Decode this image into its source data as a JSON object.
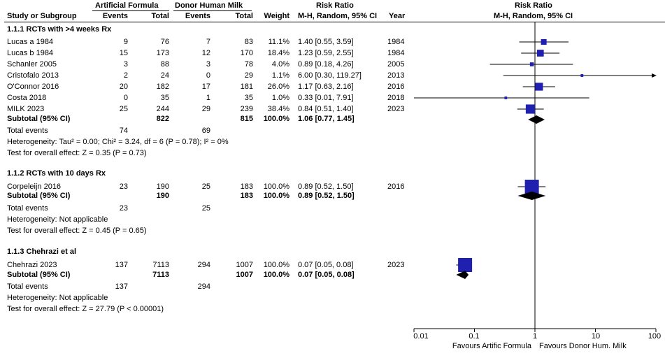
{
  "headers": {
    "group_af": "Artificial Formula",
    "group_dhm": "Donor Human Milk",
    "study": "Study or Subgroup",
    "events": "Events",
    "total": "Total",
    "weight": "Weight",
    "rr_title": "Risk Ratio",
    "rr_method": "M-H, Random, 95% CI",
    "year": "Year",
    "plot_title": "Risk Ratio",
    "plot_method": "M-H, Random, 95% CI"
  },
  "subgroups": [
    {
      "title": "1.1.1 RCTs with >4 weeks Rx",
      "studies": [
        {
          "name": "Lucas a 1984",
          "e1": "9",
          "n1": "76",
          "e2": "7",
          "n2": "83",
          "weight": "11.1%",
          "ci": "1.40 [0.55, 3.59]",
          "year": "1984"
        },
        {
          "name": "Lucas b 1984",
          "e1": "15",
          "n1": "173",
          "e2": "12",
          "n2": "170",
          "weight": "18.4%",
          "ci": "1.23 [0.59, 2.55]",
          "year": "1984"
        },
        {
          "name": "Schanler 2005",
          "e1": "3",
          "n1": "88",
          "e2": "3",
          "n2": "78",
          "weight": "4.0%",
          "ci": "0.89 [0.18, 4.26]",
          "year": "2005"
        },
        {
          "name": "Cristofalo 2013",
          "e1": "2",
          "n1": "24",
          "e2": "0",
          "n2": "29",
          "weight": "1.1%",
          "ci": "6.00 [0.30, 119.27]",
          "year": "2013"
        },
        {
          "name": "O'Connor 2016",
          "e1": "20",
          "n1": "182",
          "e2": "17",
          "n2": "181",
          "weight": "26.0%",
          "ci": "1.17 [0.63, 2.16]",
          "year": "2016"
        },
        {
          "name": "Costa 2018",
          "e1": "0",
          "n1": "35",
          "e2": "1",
          "n2": "35",
          "weight": "1.0%",
          "ci": "0.33 [0.01, 7.91]",
          "year": "2018"
        },
        {
          "name": "MILK 2023",
          "e1": "25",
          "n1": "244",
          "e2": "29",
          "n2": "239",
          "weight": "38.4%",
          "ci": "0.84 [0.51, 1.40]",
          "year": "2023"
        }
      ],
      "subtotal": {
        "label": "Subtotal (95% CI)",
        "n1": "822",
        "n2": "815",
        "weight": "100.0%",
        "ci": "1.06 [0.77, 1.45]"
      },
      "total_events": {
        "label": "Total events",
        "e1": "74",
        "e2": "69"
      },
      "heterogeneity": "Heterogeneity: Tau² = 0.00; Chi² = 3.24, df = 6 (P = 0.78); I² = 0%",
      "overall": "Test for overall effect: Z = 0.35 (P = 0.73)"
    },
    {
      "title": "1.1.2 RCTs with 10 days Rx",
      "studies": [
        {
          "name": "Corpeleijn 2016",
          "e1": "23",
          "n1": "190",
          "e2": "25",
          "n2": "183",
          "weight": "100.0%",
          "ci": "0.89 [0.52, 1.50]",
          "year": "2016"
        }
      ],
      "subtotal": {
        "label": "Subtotal (95% CI)",
        "n1": "190",
        "n2": "183",
        "weight": "100.0%",
        "ci": "0.89 [0.52, 1.50]"
      },
      "total_events": {
        "label": "Total events",
        "e1": "23",
        "e2": "25"
      },
      "heterogeneity": "Heterogeneity: Not applicable",
      "overall": "Test for overall effect: Z = 0.45 (P = 0.65)"
    },
    {
      "title": "1.1.3 Chehrazi et al",
      "studies": [
        {
          "name": "Chehrazi 2023",
          "e1": "137",
          "n1": "7113",
          "e2": "294",
          "n2": "1007",
          "weight": "100.0%",
          "ci": "0.07 [0.05, 0.08]",
          "year": "2023"
        }
      ],
      "subtotal": {
        "label": "Subtotal (95% CI)",
        "n1": "7113",
        "n2": "1007",
        "weight": "100.0%",
        "ci": "0.07 [0.05, 0.08]"
      },
      "total_events": {
        "label": "Total events",
        "e1": "137",
        "e2": "294"
      },
      "heterogeneity": "Heterogeneity: Not applicable",
      "overall": "Test for overall effect: Z = 27.79 (P < 0.00001)"
    }
  ],
  "axis": {
    "ticks": [
      "0.01",
      "0.1",
      "1",
      "10",
      "100"
    ],
    "favours_left": "Favours Artific Formula",
    "favours_right": "Favours Donor Hum. Milk"
  },
  "colors": {
    "square": "#1f1fb0",
    "diamond": "#000000",
    "line": "#000000"
  },
  "chart_data": {
    "type": "forest",
    "scale": "log",
    "xlim": [
      0.01,
      100
    ],
    "null_line": 1,
    "title": "Risk Ratio (M-H, Random, 95% CI)",
    "studies": [
      {
        "subgroup": 0,
        "name": "Lucas a 1984",
        "rr": 1.4,
        "lo": 0.55,
        "hi": 3.59,
        "weight": 11.1
      },
      {
        "subgroup": 0,
        "name": "Lucas b 1984",
        "rr": 1.23,
        "lo": 0.59,
        "hi": 2.55,
        "weight": 18.4
      },
      {
        "subgroup": 0,
        "name": "Schanler 2005",
        "rr": 0.89,
        "lo": 0.18,
        "hi": 4.26,
        "weight": 4.0
      },
      {
        "subgroup": 0,
        "name": "Cristofalo 2013",
        "rr": 6.0,
        "lo": 0.3,
        "hi": 119.27,
        "weight": 1.1
      },
      {
        "subgroup": 0,
        "name": "O'Connor 2016",
        "rr": 1.17,
        "lo": 0.63,
        "hi": 2.16,
        "weight": 26.0
      },
      {
        "subgroup": 0,
        "name": "Costa 2018",
        "rr": 0.33,
        "lo": 0.01,
        "hi": 7.91,
        "weight": 1.0
      },
      {
        "subgroup": 0,
        "name": "MILK 2023",
        "rr": 0.84,
        "lo": 0.51,
        "hi": 1.4,
        "weight": 38.4
      },
      {
        "subgroup": 1,
        "name": "Corpeleijn 2016",
        "rr": 0.89,
        "lo": 0.52,
        "hi": 1.5,
        "weight": 100.0
      },
      {
        "subgroup": 2,
        "name": "Chehrazi 2023",
        "rr": 0.07,
        "lo": 0.05,
        "hi": 0.08,
        "weight": 100.0
      }
    ],
    "subtotals": [
      {
        "subgroup": 0,
        "rr": 1.06,
        "lo": 0.77,
        "hi": 1.45
      },
      {
        "subgroup": 1,
        "rr": 0.89,
        "lo": 0.52,
        "hi": 1.5
      },
      {
        "subgroup": 2,
        "rr": 0.07,
        "lo": 0.05,
        "hi": 0.08
      }
    ]
  }
}
